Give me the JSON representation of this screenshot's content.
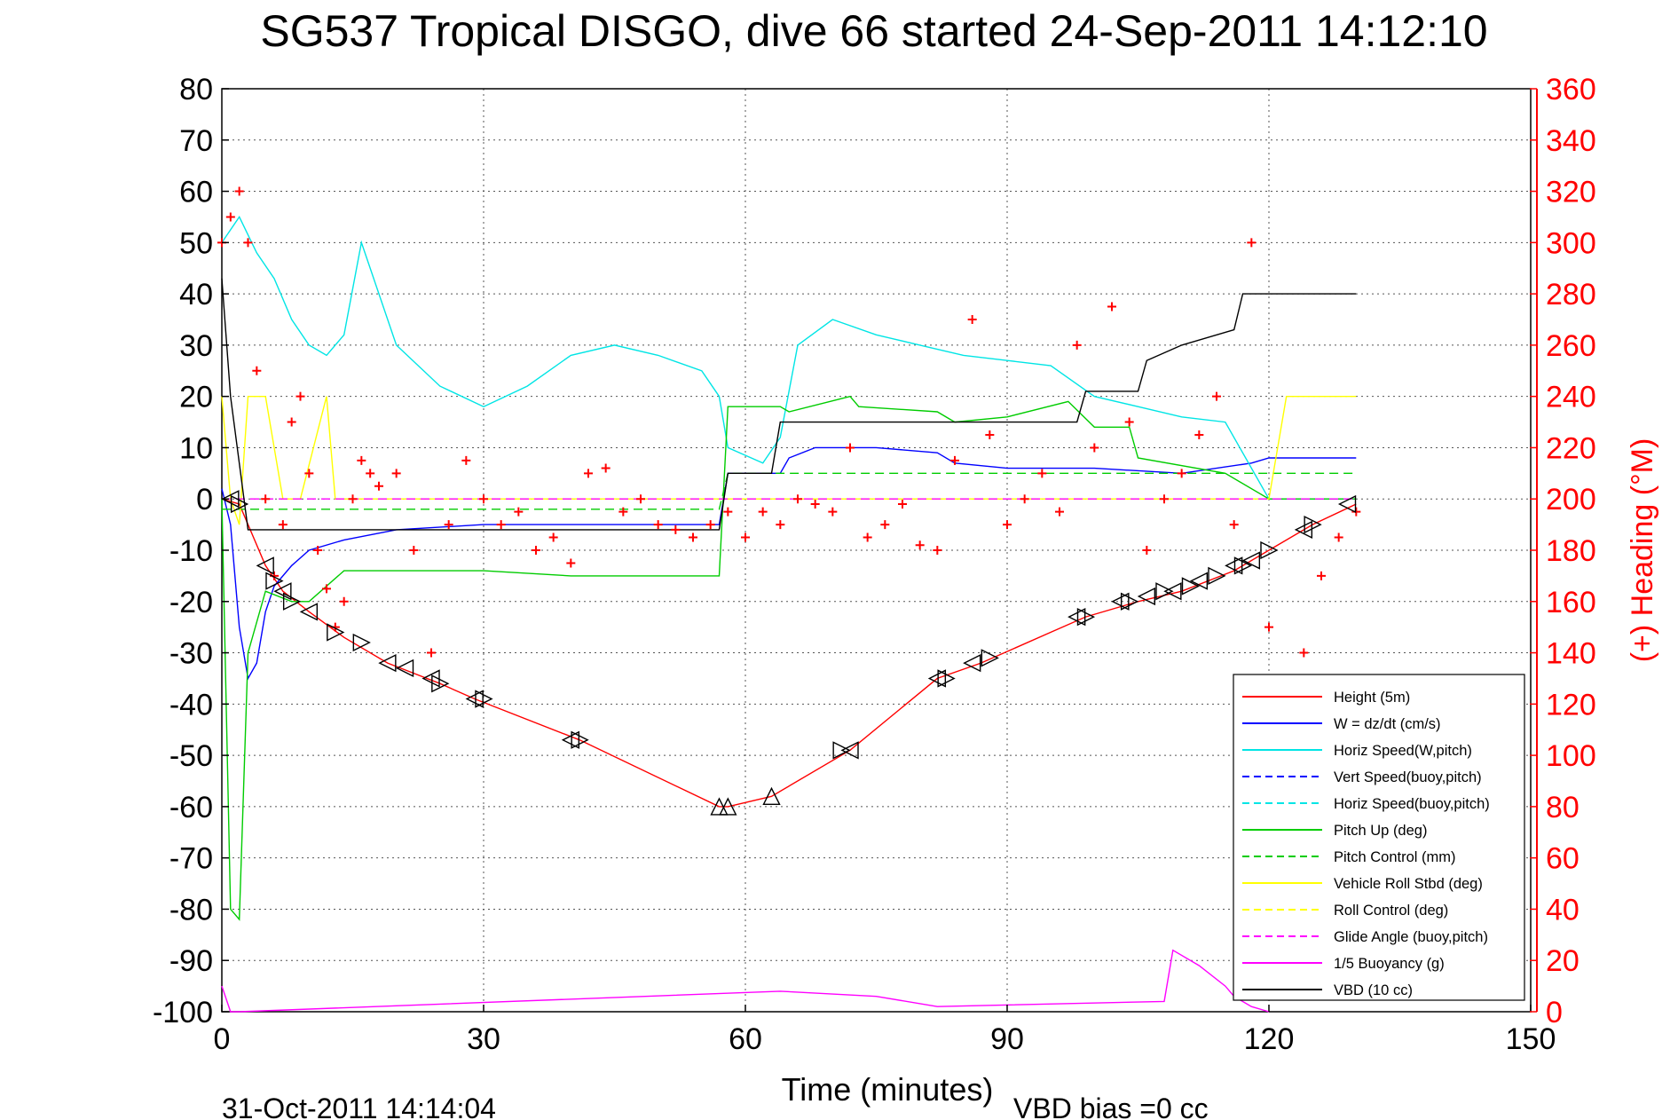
{
  "chart_data": {
    "type": "line",
    "title": "SG537 Tropical DISGO, dive 66 started 24-Sep-2011 14:12:10",
    "xlabel": "Time (minutes)",
    "ylabel_right": "(+) Heading (°M)",
    "footer_left": "31-Oct-2011 14:14:04",
    "footer_right": "VBD bias =0 cc",
    "xlim": [
      0,
      150
    ],
    "ylim": [
      -100,
      80
    ],
    "ylim_right": [
      0,
      360
    ],
    "xticks": [
      0,
      30,
      60,
      90,
      120,
      150
    ],
    "yticks": [
      80,
      70,
      60,
      50,
      40,
      30,
      20,
      10,
      0,
      -10,
      -20,
      -30,
      -40,
      -50,
      -60,
      -70,
      -80,
      -90,
      -100
    ],
    "yticks_right": [
      360,
      340,
      320,
      300,
      280,
      260,
      240,
      220,
      200,
      180,
      160,
      140,
      120,
      100,
      80,
      60,
      40,
      20,
      0
    ],
    "grid": true,
    "legend_position": "bottom-right",
    "colors": {
      "height": "#ff0000",
      "w": "#0000ff",
      "horiz": "#00e5e5",
      "pitch": "#00cc00",
      "roll": "#ffff00",
      "glide": "#ff00ff",
      "vbd": "#000000",
      "right_axis": "#ff0000"
    },
    "legend": [
      {
        "name": "Height (5m)",
        "color": "#ff0000",
        "dash": false
      },
      {
        "name": "W = dz/dt (cm/s)",
        "color": "#0000ff",
        "dash": false
      },
      {
        "name": "Horiz Speed(W,pitch)",
        "color": "#00e5e5",
        "dash": false
      },
      {
        "name": "Vert Speed(buoy,pitch)",
        "color": "#0000ff",
        "dash": true
      },
      {
        "name": "Horiz Speed(buoy,pitch)",
        "color": "#00e5e5",
        "dash": true
      },
      {
        "name": "Pitch Up (deg)",
        "color": "#00cc00",
        "dash": false
      },
      {
        "name": "Pitch Control (mm)",
        "color": "#00cc00",
        "dash": true
      },
      {
        "name": "Vehicle Roll Stbd (deg)",
        "color": "#ffff00",
        "dash": false
      },
      {
        "name": "Roll Control (deg)",
        "color": "#ffff00",
        "dash": true
      },
      {
        "name": "Glide Angle (buoy,pitch)",
        "color": "#ff00ff",
        "dash": true
      },
      {
        "name": "1/5 Buoyancy (g)",
        "color": "#ff00ff",
        "dash": false
      },
      {
        "name": "VBD (10 cc)",
        "color": "#000000",
        "dash": false
      }
    ],
    "series": [
      {
        "key": "height",
        "x": [
          0,
          2,
          5,
          7,
          10,
          14,
          19,
          25,
          29,
          41,
          57,
          58,
          63,
          72,
          82,
          87,
          95,
          99,
          105,
          110,
          116,
          120,
          125,
          130
        ],
        "y": [
          0,
          -1,
          -13,
          -18,
          -22,
          -27,
          -32,
          -36,
          -39,
          -47,
          -60,
          -60,
          -58,
          -49,
          -35,
          -32,
          -26,
          -23,
          -20,
          -18,
          -14,
          -10,
          -5,
          -1
        ]
      },
      {
        "key": "w",
        "x": [
          0,
          1,
          2,
          3,
          4,
          5,
          6,
          8,
          10,
          14,
          20,
          30,
          40,
          57,
          58,
          64,
          65,
          68,
          75,
          82,
          84,
          90,
          100,
          110,
          118,
          120,
          125,
          130
        ],
        "y": [
          2,
          -5,
          -25,
          -35,
          -32,
          -22,
          -17,
          -13,
          -10,
          -8,
          -6,
          -5,
          -5,
          -5,
          5,
          5,
          8,
          10,
          10,
          9,
          7,
          6,
          6,
          5,
          7,
          8,
          8,
          8
        ]
      },
      {
        "key": "horiz",
        "x": [
          0,
          2,
          4,
          6,
          8,
          10,
          12,
          14,
          16,
          20,
          25,
          30,
          35,
          40,
          45,
          50,
          55,
          57,
          58,
          62,
          64,
          66,
          70,
          75,
          80,
          85,
          90,
          95,
          100,
          105,
          110,
          115,
          120,
          125,
          130
        ],
        "y": [
          50,
          55,
          48,
          43,
          35,
          30,
          28,
          32,
          50,
          30,
          22,
          18,
          22,
          28,
          30,
          28,
          25,
          20,
          10,
          7,
          12,
          30,
          35,
          32,
          30,
          28,
          27,
          26,
          20,
          18,
          16,
          15,
          0,
          0,
          0
        ]
      },
      {
        "key": "pitch",
        "x": [
          0,
          1,
          2,
          3,
          5,
          8,
          10,
          14,
          20,
          30,
          40,
          57,
          58,
          64,
          65,
          72,
          73,
          82,
          84,
          90,
          97,
          100,
          104,
          105,
          115,
          120,
          125,
          130
        ],
        "y": [
          0,
          -80,
          -82,
          -30,
          -18,
          -20,
          -20,
          -14,
          -14,
          -14,
          -15,
          -15,
          18,
          18,
          17,
          20,
          18,
          17,
          15,
          16,
          19,
          14,
          14,
          8,
          5,
          0,
          0,
          0
        ]
      },
      {
        "key": "pitch_ctl",
        "x": [
          0,
          57,
          58,
          130
        ],
        "y": [
          -2,
          -2,
          5,
          5
        ]
      },
      {
        "key": "roll",
        "x": [
          0,
          1,
          2,
          3,
          5,
          7,
          9,
          12,
          13,
          18,
          25,
          30,
          40,
          60,
          72,
          90,
          100,
          110,
          120,
          122,
          125,
          130
        ],
        "y": [
          20,
          0,
          -5,
          20,
          20,
          0,
          0,
          20,
          0,
          0,
          0,
          0,
          0,
          0,
          0,
          0,
          0,
          0,
          0,
          20,
          20,
          20
        ]
      },
      {
        "key": "glide",
        "x": [
          0,
          130
        ],
        "y": [
          0,
          0
        ]
      },
      {
        "key": "buoy",
        "x": [
          0,
          1,
          2,
          64,
          75,
          82,
          108,
          109,
          112,
          115,
          116,
          118,
          120
        ],
        "y": [
          -95,
          -100,
          -100,
          -96,
          -97,
          -99,
          -98,
          -88,
          -91,
          -95,
          -97,
          -99,
          -100
        ]
      },
      {
        "key": "vbd",
        "x": [
          0,
          1,
          3,
          57,
          58,
          63,
          64,
          72,
          73,
          98,
          99,
          105,
          106,
          110,
          116,
          117,
          120,
          130
        ],
        "y": [
          43,
          20,
          -6,
          -6,
          5,
          5,
          15,
          15,
          15,
          15,
          21,
          21,
          27,
          30,
          33,
          40,
          40,
          40
        ]
      },
      {
        "key": "heading",
        "axis": "right",
        "x": [
          0,
          1,
          2,
          3,
          4,
          5,
          6,
          7,
          8,
          9,
          10,
          11,
          12,
          13,
          14,
          15,
          16,
          17,
          18,
          20,
          22,
          24,
          26,
          28,
          30,
          32,
          34,
          36,
          38,
          40,
          42,
          44,
          46,
          48,
          50,
          52,
          54,
          56,
          58,
          60,
          62,
          64,
          66,
          68,
          70,
          72,
          74,
          76,
          78,
          80,
          82,
          84,
          86,
          88,
          90,
          92,
          94,
          96,
          98,
          100,
          102,
          104,
          106,
          108,
          110,
          112,
          114,
          116,
          118,
          120,
          122,
          124,
          126,
          128,
          130
        ],
        "y": [
          300,
          310,
          320,
          300,
          250,
          200,
          170,
          190,
          230,
          240,
          210,
          180,
          165,
          150,
          160,
          200,
          215,
          210,
          205,
          210,
          180,
          140,
          190,
          215,
          200,
          190,
          195,
          180,
          185,
          175,
          210,
          212,
          195,
          200,
          190,
          188,
          185,
          190,
          195,
          185,
          195,
          190,
          200,
          198,
          195,
          220,
          185,
          190,
          198,
          182,
          180,
          215,
          270,
          225,
          190,
          200,
          210,
          195,
          260,
          220,
          275,
          230,
          180,
          200,
          210,
          225,
          240,
          190,
          300,
          150,
          125,
          140,
          170,
          185,
          195
        ]
      }
    ],
    "triangles": [
      {
        "x": 1,
        "y": 0,
        "dir": "left"
      },
      {
        "x": 2,
        "y": -1,
        "dir": "right"
      },
      {
        "x": 5,
        "y": -13,
        "dir": "left"
      },
      {
        "x": 6,
        "y": -16,
        "dir": "right"
      },
      {
        "x": 7,
        "y": -18,
        "dir": "left"
      },
      {
        "x": 8,
        "y": -20,
        "dir": "right"
      },
      {
        "x": 10,
        "y": -22,
        "dir": "left"
      },
      {
        "x": 13,
        "y": -26,
        "dir": "right"
      },
      {
        "x": 16,
        "y": -28,
        "dir": "right"
      },
      {
        "x": 19,
        "y": -32,
        "dir": "left"
      },
      {
        "x": 21,
        "y": -33,
        "dir": "left"
      },
      {
        "x": 24,
        "y": -35,
        "dir": "left"
      },
      {
        "x": 25,
        "y": -36,
        "dir": "right"
      },
      {
        "x": 29,
        "y": -39,
        "dir": "left"
      },
      {
        "x": 30,
        "y": -39,
        "dir": "right"
      },
      {
        "x": 40,
        "y": -47,
        "dir": "left"
      },
      {
        "x": 41,
        "y": -47,
        "dir": "right"
      },
      {
        "x": 57,
        "y": -60,
        "dir": "up"
      },
      {
        "x": 58,
        "y": -60,
        "dir": "up"
      },
      {
        "x": 63,
        "y": -58,
        "dir": "up"
      },
      {
        "x": 71,
        "y": -49,
        "dir": "right"
      },
      {
        "x": 72,
        "y": -49,
        "dir": "left"
      },
      {
        "x": 82,
        "y": -35,
        "dir": "left"
      },
      {
        "x": 83,
        "y": -35,
        "dir": "right"
      },
      {
        "x": 86,
        "y": -32,
        "dir": "left"
      },
      {
        "x": 88,
        "y": -31,
        "dir": "right"
      },
      {
        "x": 98,
        "y": -23,
        "dir": "left"
      },
      {
        "x": 99,
        "y": -23,
        "dir": "right"
      },
      {
        "x": 103,
        "y": -20,
        "dir": "left"
      },
      {
        "x": 104,
        "y": -20,
        "dir": "right"
      },
      {
        "x": 106,
        "y": -19,
        "dir": "left"
      },
      {
        "x": 108,
        "y": -18,
        "dir": "right"
      },
      {
        "x": 109,
        "y": -18,
        "dir": "left"
      },
      {
        "x": 111,
        "y": -17,
        "dir": "right"
      },
      {
        "x": 112,
        "y": -16,
        "dir": "left"
      },
      {
        "x": 114,
        "y": -15,
        "dir": "right"
      },
      {
        "x": 116,
        "y": -13,
        "dir": "left"
      },
      {
        "x": 117,
        "y": -13,
        "dir": "right"
      },
      {
        "x": 118,
        "y": -12,
        "dir": "left"
      },
      {
        "x": 120,
        "y": -10,
        "dir": "right"
      },
      {
        "x": 124,
        "y": -6,
        "dir": "left"
      },
      {
        "x": 125,
        "y": -5,
        "dir": "right"
      },
      {
        "x": 129,
        "y": -1,
        "dir": "left"
      }
    ]
  }
}
